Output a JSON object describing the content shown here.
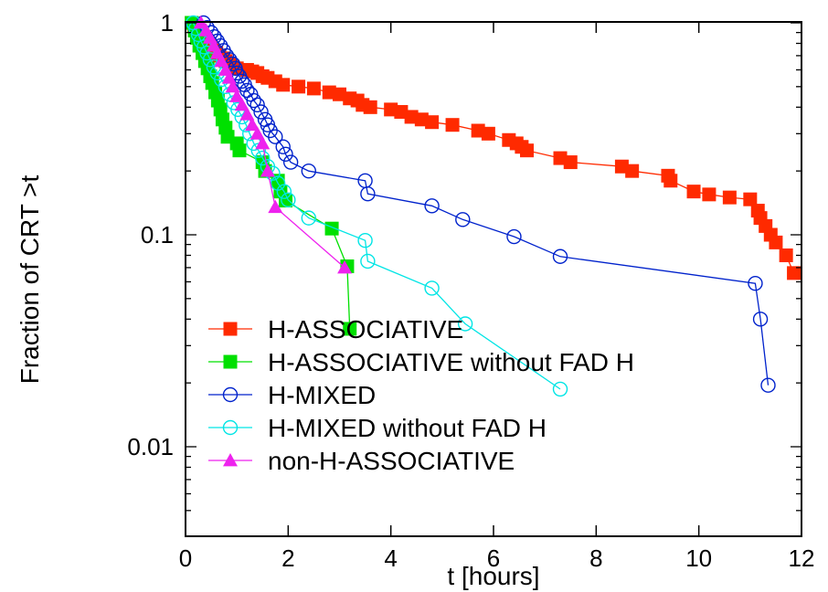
{
  "chart_data": {
    "type": "scatter",
    "xlabel": "t [hours]",
    "ylabel": "Fraction of CRT >t",
    "xlim": [
      0,
      12
    ],
    "ylim": [
      0.005,
      1
    ],
    "y_scale": "log",
    "x_ticks": [
      0,
      2,
      4,
      6,
      8,
      10,
      12
    ],
    "x_tick_labels": [
      "0",
      "2",
      "4",
      "6",
      "8",
      "10",
      "12"
    ],
    "y_ticks": [
      0.01,
      0.1,
      1
    ],
    "y_tick_labels": [
      "0.01",
      "0.1",
      "1"
    ],
    "grid": false,
    "legend_position": "bottom-left",
    "series": [
      {
        "name": "H-ASSOCIATIVE",
        "color": "#ff2a00",
        "marker": "filled-square",
        "points": [
          [
            0.12,
            1.0
          ],
          [
            0.17,
            0.97
          ],
          [
            0.22,
            0.94
          ],
          [
            0.27,
            0.91
          ],
          [
            0.32,
            0.88
          ],
          [
            0.36,
            0.85
          ],
          [
            0.41,
            0.82
          ],
          [
            0.46,
            0.79
          ],
          [
            0.5,
            0.76
          ],
          [
            0.55,
            0.74
          ],
          [
            0.6,
            0.72
          ],
          [
            0.66,
            0.7
          ],
          [
            0.72,
            0.68
          ],
          [
            0.78,
            0.66
          ],
          [
            0.85,
            0.64
          ],
          [
            0.92,
            0.62
          ],
          [
            1.0,
            0.61
          ],
          [
            1.2,
            0.6
          ],
          [
            1.3,
            0.59
          ],
          [
            1.4,
            0.58
          ],
          [
            1.5,
            0.56
          ],
          [
            1.6,
            0.55
          ],
          [
            1.75,
            0.53
          ],
          [
            1.9,
            0.51
          ],
          [
            2.2,
            0.5
          ],
          [
            2.5,
            0.49
          ],
          [
            2.8,
            0.47
          ],
          [
            3.0,
            0.46
          ],
          [
            3.2,
            0.44
          ],
          [
            3.35,
            0.43
          ],
          [
            3.45,
            0.41
          ],
          [
            3.6,
            0.4
          ],
          [
            4.0,
            0.39
          ],
          [
            4.2,
            0.38
          ],
          [
            4.4,
            0.36
          ],
          [
            4.6,
            0.35
          ],
          [
            4.8,
            0.34
          ],
          [
            5.2,
            0.33
          ],
          [
            5.7,
            0.31
          ],
          [
            5.9,
            0.3
          ],
          [
            6.3,
            0.28
          ],
          [
            6.45,
            0.27
          ],
          [
            6.55,
            0.26
          ],
          [
            6.65,
            0.25
          ],
          [
            7.3,
            0.23
          ],
          [
            7.5,
            0.22
          ],
          [
            8.5,
            0.21
          ],
          [
            8.7,
            0.2
          ],
          [
            9.4,
            0.19
          ],
          [
            9.45,
            0.18
          ],
          [
            9.9,
            0.16
          ],
          [
            10.2,
            0.155
          ],
          [
            10.6,
            0.15
          ],
          [
            11.0,
            0.147
          ],
          [
            11.15,
            0.13
          ],
          [
            11.2,
            0.12
          ],
          [
            11.3,
            0.11
          ],
          [
            11.4,
            0.1
          ],
          [
            11.5,
            0.092
          ],
          [
            11.7,
            0.08
          ],
          [
            11.85,
            0.066
          ]
        ]
      },
      {
        "name": "H-ASSOCIATIVE without FAD H",
        "color": "#00e000",
        "marker": "filled-square",
        "points": [
          [
            0.12,
            1.0
          ],
          [
            0.18,
            0.92
          ],
          [
            0.22,
            0.85
          ],
          [
            0.27,
            0.78
          ],
          [
            0.33,
            0.72
          ],
          [
            0.38,
            0.66
          ],
          [
            0.43,
            0.61
          ],
          [
            0.48,
            0.56
          ],
          [
            0.52,
            0.52
          ],
          [
            0.58,
            0.47
          ],
          [
            0.63,
            0.43
          ],
          [
            0.68,
            0.39
          ],
          [
            0.72,
            0.35
          ],
          [
            0.78,
            0.32
          ],
          [
            0.82,
            0.29
          ],
          [
            1.0,
            0.27
          ],
          [
            1.05,
            0.25
          ],
          [
            1.5,
            0.22
          ],
          [
            1.55,
            0.2
          ],
          [
            1.8,
            0.18
          ],
          [
            1.85,
            0.16
          ],
          [
            1.95,
            0.145
          ],
          [
            2.85,
            0.107
          ],
          [
            3.15,
            0.071
          ],
          [
            3.2,
            0.036
          ]
        ]
      },
      {
        "name": "H-MIXED",
        "color": "#0022cc",
        "marker": "open-circle",
        "points": [
          [
            0.35,
            1.0
          ],
          [
            0.42,
            0.95
          ],
          [
            0.5,
            0.9
          ],
          [
            0.56,
            0.86
          ],
          [
            0.62,
            0.82
          ],
          [
            0.68,
            0.78
          ],
          [
            0.74,
            0.74
          ],
          [
            0.8,
            0.7
          ],
          [
            0.86,
            0.67
          ],
          [
            0.92,
            0.64
          ],
          [
            0.97,
            0.61
          ],
          [
            1.0,
            0.58
          ],
          [
            1.05,
            0.56
          ],
          [
            1.1,
            0.53
          ],
          [
            1.15,
            0.51
          ],
          [
            1.2,
            0.48
          ],
          [
            1.27,
            0.46
          ],
          [
            1.33,
            0.43
          ],
          [
            1.4,
            0.41
          ],
          [
            1.47,
            0.38
          ],
          [
            1.55,
            0.35
          ],
          [
            1.6,
            0.33
          ],
          [
            1.65,
            0.31
          ],
          [
            1.75,
            0.29
          ],
          [
            1.9,
            0.26
          ],
          [
            1.95,
            0.24
          ],
          [
            2.05,
            0.22
          ],
          [
            2.4,
            0.2
          ],
          [
            3.5,
            0.18
          ],
          [
            3.55,
            0.156
          ],
          [
            4.8,
            0.137
          ],
          [
            5.4,
            0.118
          ],
          [
            6.4,
            0.098
          ],
          [
            7.3,
            0.079
          ],
          [
            11.1,
            0.059
          ],
          [
            11.2,
            0.04
          ],
          [
            11.35,
            0.0195
          ]
        ]
      },
      {
        "name": "H-MIXED without FAD H",
        "color": "#00e5e5",
        "marker": "open-circle",
        "points": [
          [
            0.15,
            1.0
          ],
          [
            0.2,
            0.94
          ],
          [
            0.25,
            0.88
          ],
          [
            0.3,
            0.82
          ],
          [
            0.36,
            0.77
          ],
          [
            0.42,
            0.72
          ],
          [
            0.48,
            0.67
          ],
          [
            0.55,
            0.62
          ],
          [
            0.62,
            0.58
          ],
          [
            0.7,
            0.54
          ],
          [
            0.78,
            0.5
          ],
          [
            0.86,
            0.46
          ],
          [
            0.94,
            0.42
          ],
          [
            1.02,
            0.39
          ],
          [
            1.1,
            0.36
          ],
          [
            1.18,
            0.33
          ],
          [
            1.25,
            0.3
          ],
          [
            1.33,
            0.27
          ],
          [
            1.42,
            0.25
          ],
          [
            1.5,
            0.23
          ],
          [
            1.6,
            0.21
          ],
          [
            1.7,
            0.195
          ],
          [
            1.8,
            0.175
          ],
          [
            1.92,
            0.16
          ],
          [
            2.0,
            0.146
          ],
          [
            2.4,
            0.12
          ],
          [
            3.5,
            0.094
          ],
          [
            3.55,
            0.075
          ],
          [
            4.8,
            0.056
          ],
          [
            5.45,
            0.038
          ],
          [
            7.3,
            0.0187
          ]
        ]
      },
      {
        "name": "non-H-ASSOCIATIVE",
        "color": "#ee22ee",
        "marker": "filled-triangle",
        "points": [
          [
            0.3,
            1.0
          ],
          [
            0.4,
            0.92
          ],
          [
            0.48,
            0.85
          ],
          [
            0.55,
            0.78
          ],
          [
            0.62,
            0.72
          ],
          [
            0.7,
            0.66
          ],
          [
            0.78,
            0.6
          ],
          [
            0.85,
            0.55
          ],
          [
            0.92,
            0.5
          ],
          [
            1.0,
            0.45
          ],
          [
            1.1,
            0.41
          ],
          [
            1.2,
            0.37
          ],
          [
            1.3,
            0.33
          ],
          [
            1.4,
            0.3
          ],
          [
            1.5,
            0.27
          ],
          [
            1.6,
            0.2
          ],
          [
            1.75,
            0.135
          ],
          [
            3.1,
            0.07
          ]
        ]
      }
    ]
  }
}
